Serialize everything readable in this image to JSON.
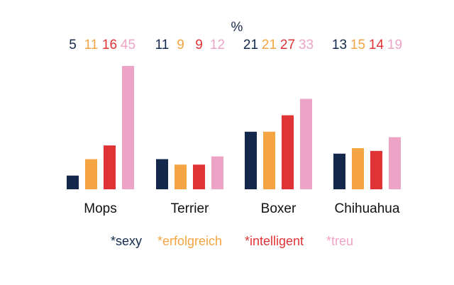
{
  "chart_data": {
    "type": "bar",
    "unit_label": "%",
    "categories": [
      "Mops",
      "Terrier",
      "Boxer",
      "Chihuahua"
    ],
    "series": [
      {
        "name": "*sexy",
        "color": "#14284b",
        "values": [
          5,
          11,
          21,
          13
        ]
      },
      {
        "name": "*erfolgreich",
        "color": "#f4a442",
        "values": [
          11,
          9,
          21,
          15
        ]
      },
      {
        "name": "*intelligent",
        "color": "#e03336",
        "values": [
          16,
          9,
          27,
          14
        ]
      },
      {
        "name": "*treu",
        "color": "#eda3c6",
        "values": [
          45,
          12,
          33,
          19
        ]
      }
    ],
    "value_labels": true,
    "legend_position": "bottom",
    "grid": false,
    "ylim": [
      0,
      45
    ]
  }
}
